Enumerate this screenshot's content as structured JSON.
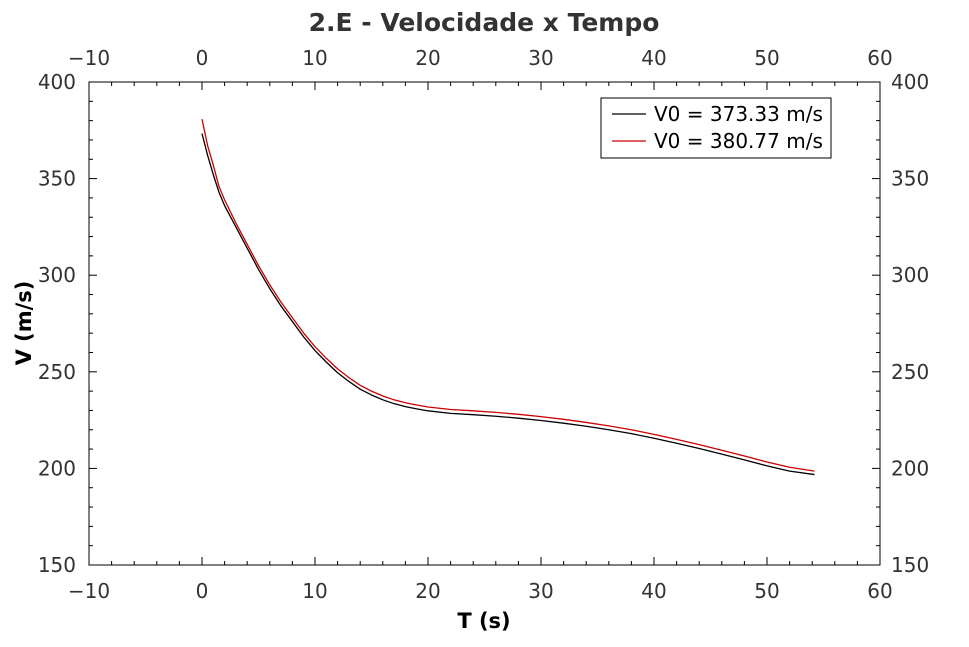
{
  "chart_data": {
    "type": "line",
    "title": "2.E - Velocidade x Tempo",
    "xlabel": "T (s)",
    "ylabel": "V (m/s)",
    "xlim": [
      -10,
      60
    ],
    "ylim": [
      150,
      400
    ],
    "xticks": [
      -10,
      0,
      10,
      20,
      30,
      40,
      50,
      60
    ],
    "yticks": [
      150,
      200,
      250,
      300,
      350,
      400
    ],
    "xtick_labels": [
      "−10",
      "0",
      "10",
      "20",
      "30",
      "40",
      "50",
      "60"
    ],
    "ytick_labels": [
      "150",
      "200",
      "250",
      "300",
      "350",
      "400"
    ],
    "mirror_axes": true,
    "grid": false,
    "legend_position": "top-right",
    "series": [
      {
        "name": "V0 = 373.33 m/s",
        "color": "#000000",
        "x": [
          0,
          0.5,
          1,
          1.5,
          2,
          3,
          4,
          5,
          6,
          7,
          8,
          9,
          10,
          11,
          12,
          13,
          14,
          15,
          16,
          17,
          18,
          19,
          20,
          22,
          24,
          26,
          28,
          30,
          32,
          34,
          36,
          38,
          40,
          42,
          44,
          46,
          48,
          50,
          52,
          54.2
        ],
        "y": [
          373.3,
          362,
          352,
          343,
          336,
          325,
          314,
          303,
          293,
          284,
          276,
          268,
          261,
          255,
          249.5,
          245,
          241,
          238,
          235.5,
          233.5,
          232,
          230.8,
          229.8,
          228.5,
          227.8,
          227,
          226,
          224.8,
          223.4,
          221.8,
          220,
          218,
          215.6,
          213,
          210.3,
          207.4,
          204.4,
          201.3,
          198.6,
          196.8
        ]
      },
      {
        "name": "V0 = 380.77 m/s",
        "color": "#cc0000",
        "x": [
          0,
          0.5,
          1,
          1.5,
          2,
          3,
          4,
          5,
          6,
          7,
          8,
          9,
          10,
          11,
          12,
          13,
          14,
          15,
          16,
          17,
          18,
          19,
          20,
          22,
          24,
          26,
          28,
          30,
          32,
          34,
          36,
          38,
          40,
          42,
          44,
          46,
          48,
          50,
          52,
          54.2
        ],
        "y": [
          380.8,
          367,
          357,
          346,
          339,
          327,
          316,
          305,
          295,
          286,
          278,
          270,
          263,
          257,
          251.5,
          247,
          243,
          240,
          237.5,
          235.5,
          234,
          232.8,
          231.8,
          230.5,
          229.8,
          229,
          228,
          226.8,
          225.4,
          223.8,
          222,
          220,
          217.6,
          215,
          212.3,
          209.4,
          206.4,
          203.3,
          200.6,
          198.6
        ]
      }
    ]
  }
}
